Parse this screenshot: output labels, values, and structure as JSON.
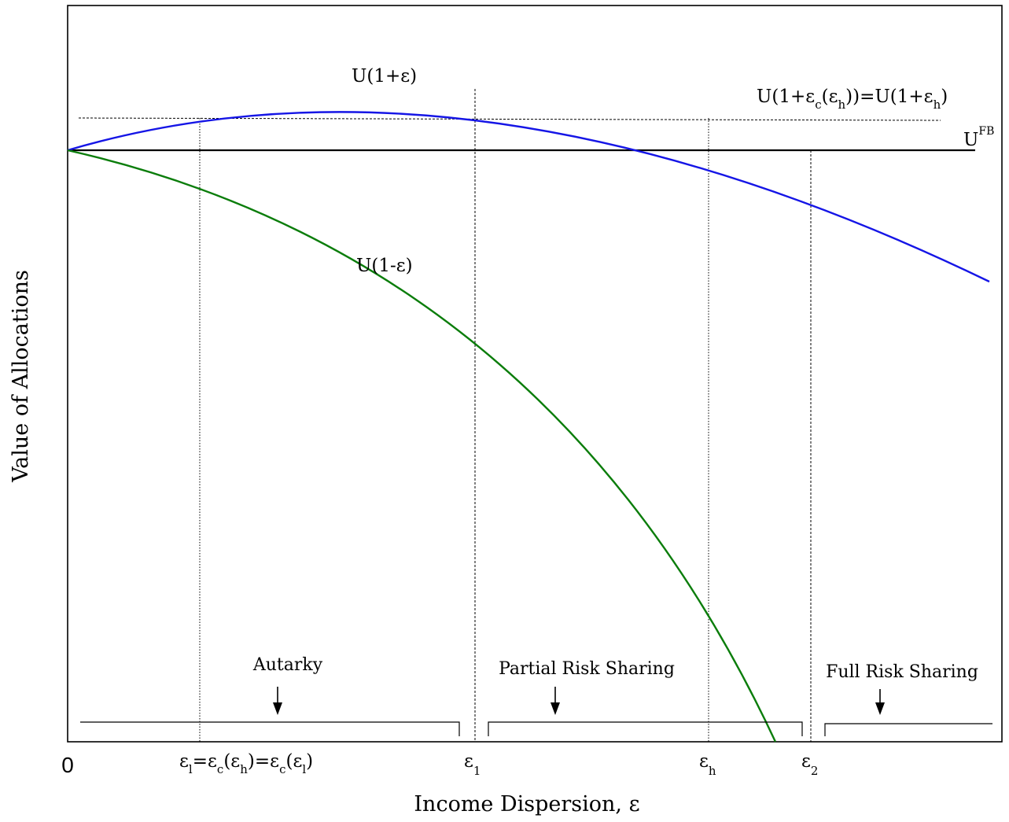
{
  "axes": {
    "x_title": "Income Dispersion, ε",
    "y_title": "Value of Allocations",
    "origin_label": "0"
  },
  "curves": {
    "upper": {
      "label": "U(1+ε)",
      "color": "#1515e6"
    },
    "lower": {
      "label": "U(1-ε)",
      "color": "#0b7d0b"
    },
    "first_best": {
      "label_base": "U",
      "label_sup": "FB",
      "color": "#000000"
    },
    "threshold": {
      "label_part1": "U(1+ε",
      "label_sub_c": "c",
      "label_part2": "(ε",
      "label_sub_h": "h",
      "label_part3": "))=U(1+ε",
      "label_sub_h2": "h",
      "label_part4": ")"
    }
  },
  "x_ticks": {
    "eps_l": {
      "p1": "ε",
      "s1": "l",
      "p2": "=ε",
      "s2": "c",
      "p3": "(ε",
      "s3": "h",
      "p4": ")=ε",
      "s4": "c",
      "p5": "(ε",
      "s5": "l",
      "p6": ")"
    },
    "eps_1": {
      "base": "ε",
      "sub": "1"
    },
    "eps_h": {
      "base": "ε",
      "sub": "h"
    },
    "eps_2": {
      "base": "ε",
      "sub": "2"
    }
  },
  "regions": [
    {
      "label": "Autarky"
    },
    {
      "label": "Partial Risk Sharing"
    },
    {
      "label": "Full Risk Sharing"
    }
  ]
}
